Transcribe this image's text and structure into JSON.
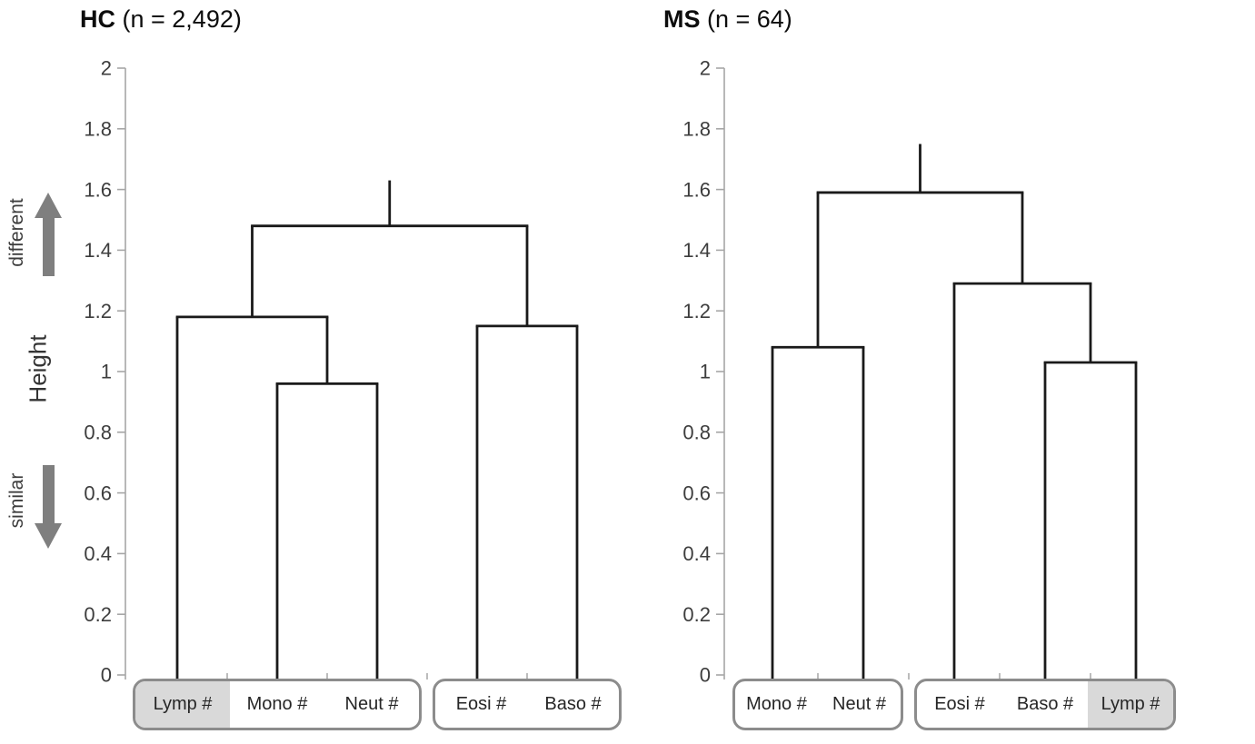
{
  "figure": {
    "description": "Hierarchical clustering dendrograms of blood cell counts for healthy controls and multiple sclerosis patients"
  },
  "side_annotations": {
    "different_label": "different",
    "height_label": "Height",
    "similar_label": "similar",
    "up_arrow_icon": "arrow-up",
    "down_arrow_icon": "arrow-down"
  },
  "colors": {
    "tree_line": "#1a1a1a",
    "axis_line": "#a6a6a6",
    "tick_text": "#3d3d3d",
    "box_border": "#8c8c8c",
    "shaded_cell": "#d9d9d9",
    "arrow": "#7f7f7f",
    "background": "#ffffff"
  },
  "chart_data": [
    {
      "type": "dendrogram",
      "title": {
        "bold": "HC",
        "rest": " (n = 2,492)"
      },
      "ylabel": "Height",
      "ylim": [
        0,
        2
      ],
      "ytick_step": 0.2,
      "yticks": [
        "2",
        "1.8",
        "1.6",
        "1.4",
        "1.2",
        "1",
        "0.8",
        "0.6",
        "0.4",
        "0.2",
        "0"
      ],
      "grid": false,
      "leaves": [
        {
          "label": "Lymp #",
          "shaded": true
        },
        {
          "label": "Mono #",
          "shaded": false
        },
        {
          "label": "Neut #",
          "shaded": false
        },
        {
          "label": "Eosi #",
          "shaded": false
        },
        {
          "label": "Baso #",
          "shaded": false
        }
      ],
      "merges": [
        {
          "id": "m1",
          "a": "Mono #",
          "b": "Neut #",
          "height": 0.96
        },
        {
          "id": "m2",
          "a": "Lymp #",
          "b": "m1",
          "height": 1.18
        },
        {
          "id": "m3",
          "a": "Eosi #",
          "b": "Baso #",
          "height": 1.15
        },
        {
          "id": "root",
          "a": "m2",
          "b": "m3",
          "height": 1.48
        }
      ],
      "root_stub_top": 1.63,
      "leaf_groups": [
        [
          0,
          2
        ],
        [
          3,
          4
        ]
      ]
    },
    {
      "type": "dendrogram",
      "title": {
        "bold": "MS",
        "rest": " (n = 64)"
      },
      "ylabel": "Height",
      "ylim": [
        0,
        2
      ],
      "ytick_step": 0.2,
      "yticks": [
        "2",
        "1.8",
        "1.6",
        "1.4",
        "1.2",
        "1",
        "0.8",
        "0.6",
        "0.4",
        "0.2",
        "0"
      ],
      "grid": false,
      "leaves": [
        {
          "label": "Mono #",
          "shaded": false
        },
        {
          "label": "Neut #",
          "shaded": false
        },
        {
          "label": "Eosi #",
          "shaded": false
        },
        {
          "label": "Baso #",
          "shaded": false
        },
        {
          "label": "Lymp #",
          "shaded": true
        }
      ],
      "merges": [
        {
          "id": "m1",
          "a": "Mono #",
          "b": "Neut #",
          "height": 1.08
        },
        {
          "id": "m2",
          "a": "Baso #",
          "b": "Lymp #",
          "height": 1.03
        },
        {
          "id": "m3",
          "a": "Eosi #",
          "b": "m2",
          "height": 1.29
        },
        {
          "id": "root",
          "a": "m1",
          "b": "m3",
          "height": 1.59
        }
      ],
      "root_stub_top": 1.75,
      "leaf_groups": [
        [
          0,
          1
        ],
        [
          2,
          4
        ]
      ]
    }
  ]
}
